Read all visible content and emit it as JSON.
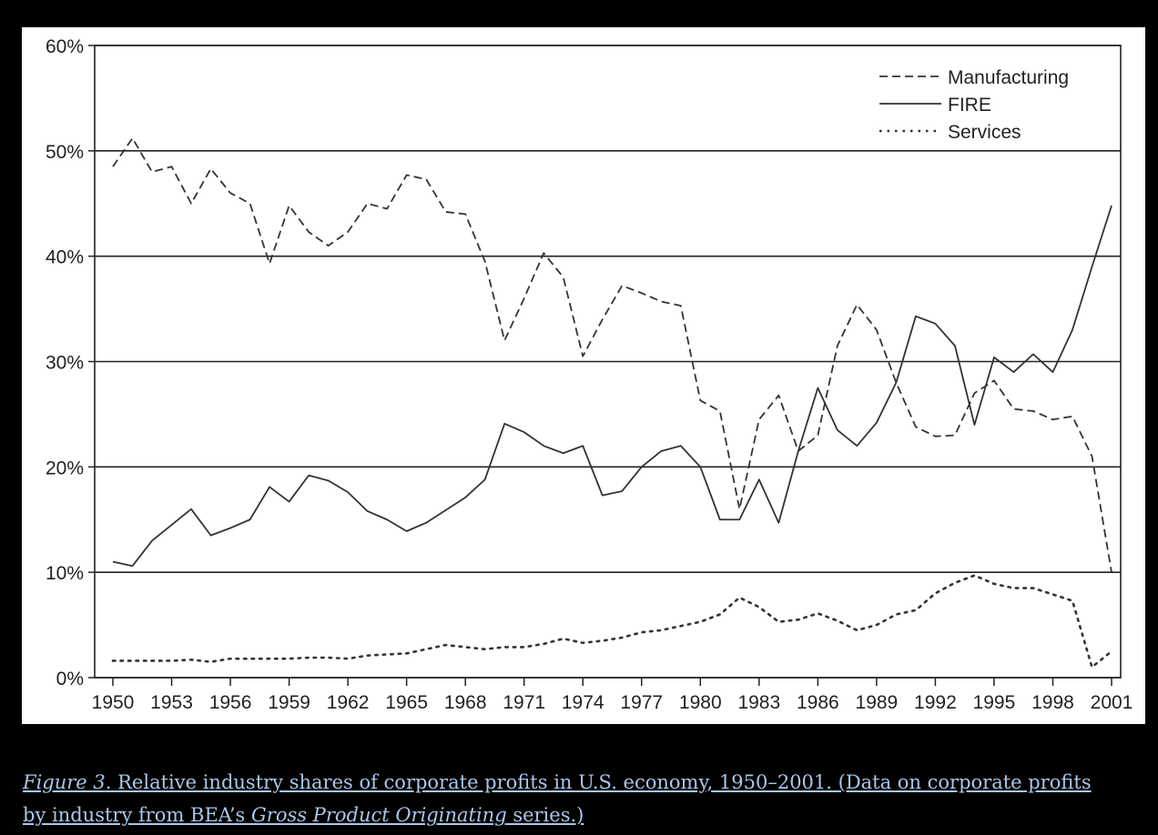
{
  "chart_data": {
    "type": "line",
    "title": "",
    "xlabel": "",
    "ylabel": "",
    "ylim": [
      0,
      60
    ],
    "xlim": [
      1950,
      2001
    ],
    "grid": true,
    "legend_position": "top-right",
    "y_ticks": [
      "0%",
      "10%",
      "20%",
      "30%",
      "40%",
      "50%",
      "60%"
    ],
    "x_ticks": [
      "1950",
      "1953",
      "1956",
      "1959",
      "1962",
      "1965",
      "1968",
      "1971",
      "1974",
      "1977",
      "1980",
      "1983",
      "1986",
      "1989",
      "1992",
      "1995",
      "1998",
      "2001"
    ],
    "x": [
      1950,
      1951,
      1952,
      1953,
      1954,
      1955,
      1956,
      1957,
      1958,
      1959,
      1960,
      1961,
      1962,
      1963,
      1964,
      1965,
      1966,
      1967,
      1968,
      1969,
      1970,
      1971,
      1972,
      1973,
      1974,
      1975,
      1976,
      1977,
      1978,
      1979,
      1980,
      1981,
      1982,
      1983,
      1984,
      1985,
      1986,
      1987,
      1988,
      1989,
      1990,
      1991,
      1992,
      1993,
      1994,
      1995,
      1996,
      1997,
      1998,
      1999,
      2000,
      2001
    ],
    "series": [
      {
        "name": "Manufacturing",
        "style": "dashed",
        "values": [
          48.5,
          51.2,
          48,
          48.5,
          45,
          48.3,
          46,
          45,
          39.3,
          44.8,
          42.3,
          41,
          42.3,
          45,
          44.5,
          47.7,
          47.3,
          44.2,
          44,
          39.5,
          32,
          36,
          40.3,
          38,
          30.5,
          34,
          37.2,
          36.5,
          35.7,
          35.3,
          26.3,
          25.3,
          16,
          24.5,
          26.8,
          21.5,
          23,
          31.5,
          35.4,
          33,
          28,
          23.8,
          22.9,
          23,
          27,
          28.2,
          25.5,
          25.3,
          24.5,
          24.8,
          21,
          10
        ]
      },
      {
        "name": "FIRE",
        "style": "solid",
        "values": [
          11,
          10.6,
          13,
          14.5,
          16,
          13.5,
          14.2,
          15,
          18.1,
          16.7,
          19.2,
          18.7,
          17.6,
          15.8,
          15,
          13.9,
          14.7,
          15.9,
          17.1,
          18.8,
          24.1,
          23.3,
          22,
          21.3,
          22,
          17.3,
          17.7,
          20,
          21.5,
          22,
          20,
          15,
          15,
          18.8,
          14.7,
          21.5,
          27.5,
          23.5,
          22,
          24.2,
          28,
          34.3,
          33.6,
          31.5,
          24,
          30.4,
          29,
          30.7,
          29,
          33,
          39,
          44.8
        ]
      },
      {
        "name": "Services",
        "style": "dotted",
        "values": [
          1.6,
          1.6,
          1.6,
          1.6,
          1.7,
          1.5,
          1.8,
          1.8,
          1.8,
          1.8,
          1.9,
          1.9,
          1.8,
          2.1,
          2.2,
          2.3,
          2.7,
          3.1,
          2.9,
          2.7,
          2.9,
          2.9,
          3.2,
          3.7,
          3.3,
          3.5,
          3.8,
          4.3,
          4.5,
          4.9,
          5.3,
          6,
          7.6,
          6.7,
          5.3,
          5.5,
          6.1,
          5.4,
          4.5,
          5,
          6,
          6.4,
          8,
          9,
          9.7,
          8.9,
          8.5,
          8.5,
          7.9,
          7.3,
          1,
          2.5
        ]
      }
    ]
  },
  "caption": {
    "figure_label": "Figure 3",
    "text_1": ". Relative industry shares of corporate profits in U.S. economy, 1950–2001. (Data on corporate profits by industry from BEA’s ",
    "italic_source": "Gross Product Originating",
    "text_2": " series.)"
  },
  "colors": {
    "line": "#333333",
    "grid": "#222222",
    "caption": "#a9c6e8"
  }
}
